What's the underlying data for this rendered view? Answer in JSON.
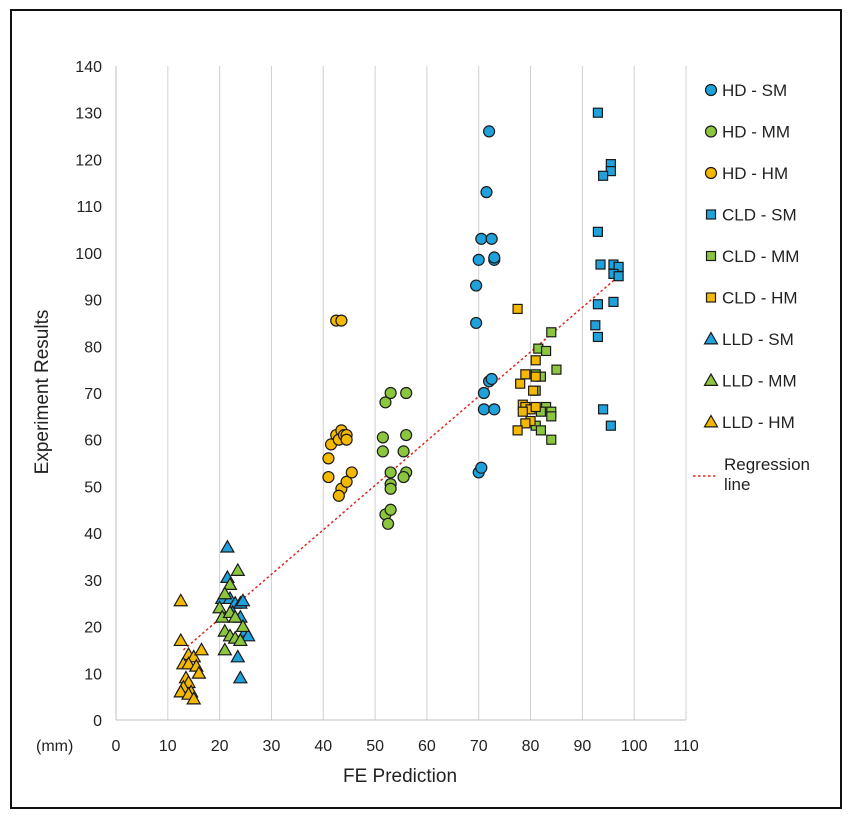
{
  "chart_data": {
    "type": "scatter",
    "title": "",
    "xlabel": "FE Prediction",
    "ylabel": "Experiment Results",
    "unit_label": "(mm)",
    "xlim": [
      0,
      110
    ],
    "ylim": [
      0,
      140
    ],
    "xticks": [
      "0",
      "10",
      "20",
      "30",
      "40",
      "50",
      "60",
      "70",
      "80",
      "90",
      "100",
      "110"
    ],
    "yticks": [
      "0",
      "10",
      "20",
      "30",
      "40",
      "50",
      "60",
      "70",
      "80",
      "90",
      "100",
      "110",
      "120",
      "130",
      "140"
    ],
    "grid": "vertical",
    "legend_position": "right",
    "regression": {
      "name": "Regression line",
      "label_lines": [
        "Regression",
        "line"
      ],
      "color": "#e0261f",
      "x": [
        13,
        97
      ],
      "y": [
        15,
        95
      ]
    },
    "series": [
      {
        "name": "HD - SM",
        "marker": "circle",
        "color": "#1fa1db",
        "points": [
          [
            69.5,
            85
          ],
          [
            69.5,
            93
          ],
          [
            70,
            98.5
          ],
          [
            70.5,
            103
          ],
          [
            71.5,
            113
          ],
          [
            72,
            126
          ],
          [
            72.5,
            103
          ],
          [
            73,
            98.5
          ],
          [
            73,
            99
          ],
          [
            71,
            66.5
          ],
          [
            73,
            66.5
          ],
          [
            72,
            72.5
          ],
          [
            72.5,
            73
          ],
          [
            70,
            53
          ],
          [
            70.5,
            54
          ],
          [
            71,
            70
          ]
        ]
      },
      {
        "name": "HD - MM",
        "marker": "circle",
        "color": "#8cc63f",
        "points": [
          [
            51.5,
            60.5
          ],
          [
            51.5,
            57.5
          ],
          [
            52,
            68
          ],
          [
            53,
            70
          ],
          [
            56,
            70
          ],
          [
            56,
            61
          ],
          [
            55.5,
            57.5
          ],
          [
            56,
            53
          ],
          [
            55.5,
            52
          ],
          [
            53,
            53
          ],
          [
            53,
            50.5
          ],
          [
            53,
            49.5
          ],
          [
            52,
            44
          ],
          [
            53,
            45
          ],
          [
            52.5,
            42
          ]
        ]
      },
      {
        "name": "HD - HM",
        "marker": "circle",
        "color": "#f5b800",
        "points": [
          [
            42.5,
            85.5
          ],
          [
            43.5,
            85.5
          ],
          [
            41,
            56
          ],
          [
            41,
            52
          ],
          [
            41.5,
            59
          ],
          [
            42.5,
            61
          ],
          [
            43,
            60
          ],
          [
            43.5,
            62
          ],
          [
            44,
            61
          ],
          [
            44.5,
            61
          ],
          [
            44.5,
            60
          ],
          [
            43.5,
            49.5
          ],
          [
            43,
            48
          ],
          [
            44.5,
            51
          ],
          [
            45.5,
            53
          ]
        ]
      },
      {
        "name": "CLD - SM",
        "marker": "square",
        "color": "#1fa1db",
        "points": [
          [
            93,
            130
          ],
          [
            95.5,
            119
          ],
          [
            95.5,
            117.5
          ],
          [
            94,
            116.5
          ],
          [
            93,
            104.5
          ],
          [
            93.5,
            97.5
          ],
          [
            96,
            97.5
          ],
          [
            97,
            97
          ],
          [
            96,
            95.5
          ],
          [
            97,
            95
          ],
          [
            93,
            89
          ],
          [
            96,
            89.5
          ],
          [
            92.5,
            84.5
          ],
          [
            93,
            82
          ],
          [
            94,
            66.5
          ],
          [
            95.5,
            63
          ]
        ]
      },
      {
        "name": "CLD - MM",
        "marker": "square",
        "color": "#8cc63f",
        "points": [
          [
            84,
            83
          ],
          [
            81.5,
            79.5
          ],
          [
            83,
            79
          ],
          [
            81,
            74
          ],
          [
            82,
            73.5
          ],
          [
            85,
            75
          ],
          [
            81,
            70.5
          ],
          [
            83,
            67
          ],
          [
            82,
            66
          ],
          [
            84,
            66
          ],
          [
            84,
            65
          ],
          [
            81,
            63
          ],
          [
            82,
            62
          ],
          [
            84,
            60
          ]
        ]
      },
      {
        "name": "CLD - HM",
        "marker": "square",
        "color": "#f5b800",
        "points": [
          [
            77.5,
            88
          ],
          [
            81,
            77
          ],
          [
            78,
            72
          ],
          [
            79,
            74
          ],
          [
            81,
            73.5
          ],
          [
            80.5,
            70.5
          ],
          [
            78.5,
            67.5
          ],
          [
            79,
            67
          ],
          [
            80,
            66.5
          ],
          [
            81,
            67
          ],
          [
            78.5,
            66
          ],
          [
            80,
            64
          ],
          [
            79,
            63.5
          ],
          [
            77.5,
            62
          ]
        ]
      },
      {
        "name": "LLD - SM",
        "marker": "triangle",
        "color": "#1fa1db",
        "points": [
          [
            21.5,
            37
          ],
          [
            21.5,
            30.5
          ],
          [
            20.5,
            26
          ],
          [
            22,
            26
          ],
          [
            23,
            25
          ],
          [
            24,
            25
          ],
          [
            24.5,
            25.5
          ],
          [
            22.5,
            23
          ],
          [
            24,
            22
          ],
          [
            25,
            19
          ],
          [
            25.5,
            18
          ],
          [
            23.5,
            13.5
          ],
          [
            24,
            9
          ]
        ]
      },
      {
        "name": "LLD - MM",
        "marker": "triangle",
        "color": "#8cc63f",
        "points": [
          [
            23.5,
            32
          ],
          [
            22,
            29
          ],
          [
            21,
            27
          ],
          [
            20,
            24
          ],
          [
            20.5,
            22
          ],
          [
            22,
            23
          ],
          [
            23,
            22
          ],
          [
            24.5,
            20
          ],
          [
            21,
            19
          ],
          [
            22,
            18
          ],
          [
            23,
            17.5
          ],
          [
            24,
            17
          ],
          [
            21,
            15
          ]
        ]
      },
      {
        "name": "LLD - HM",
        "marker": "triangle",
        "color": "#f5b800",
        "points": [
          [
            12.5,
            25.5
          ],
          [
            12.5,
            17
          ],
          [
            14,
            14
          ],
          [
            15,
            13.5
          ],
          [
            16.5,
            15
          ],
          [
            13,
            12
          ],
          [
            14,
            12
          ],
          [
            15.5,
            11.5
          ],
          [
            16,
            10
          ],
          [
            13.5,
            9
          ],
          [
            14,
            8
          ],
          [
            13,
            7
          ],
          [
            12.5,
            6
          ],
          [
            14.5,
            6
          ],
          [
            14,
            5.5
          ],
          [
            15,
            4.5
          ]
        ]
      }
    ]
  }
}
